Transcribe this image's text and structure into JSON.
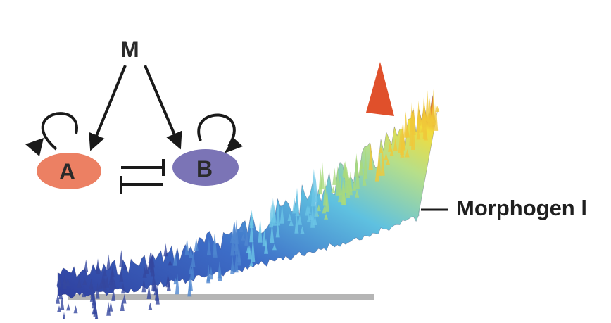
{
  "diagram": {
    "node_m": "M",
    "node_a": "A",
    "node_b": "B",
    "morphogen_label": "Morphogen l"
  },
  "colors": {
    "node_a_fill": "#ec8063",
    "node_b_fill": "#7b74b6",
    "arrow": "#1a1a1a",
    "baseline": "#b5b5b5",
    "surface_low": "#2f3f9e",
    "surface_high": "#e0502b"
  },
  "icons": [
    "self-activation-arrow-icon",
    "inhibition-bar-icon",
    "activation-arrow-icon"
  ]
}
